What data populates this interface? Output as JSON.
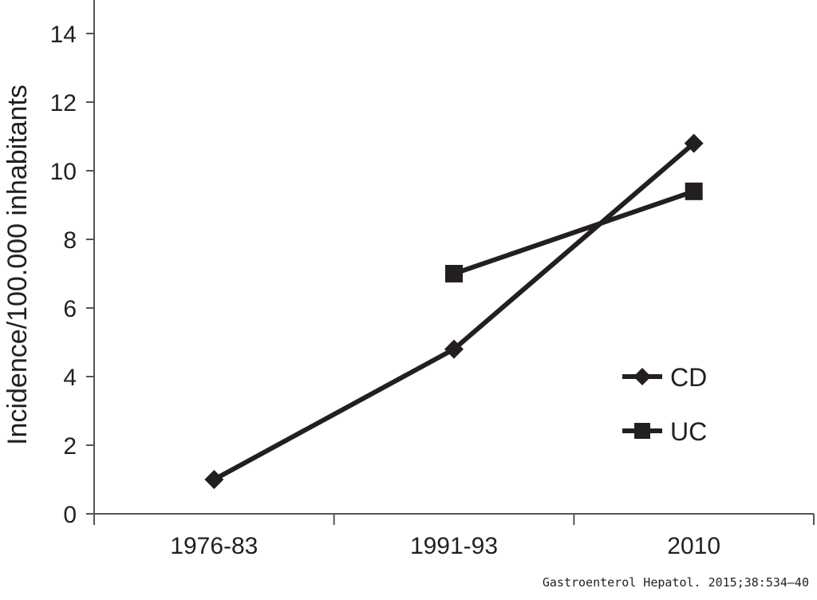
{
  "chart_data": {
    "type": "line",
    "title": "",
    "xlabel": "",
    "ylabel": "Incidence/100.000 inhabitants",
    "categories": [
      "1976-83",
      "1991-93",
      "2010"
    ],
    "ylim": [
      0,
      14
    ],
    "yticks": [
      "0",
      "2",
      "4",
      "6",
      "8",
      "10",
      "12",
      "14"
    ],
    "grid": false,
    "legend_position": "right",
    "series": [
      {
        "name": "CD",
        "marker": "diamond",
        "values": [
          1.0,
          4.8,
          10.8
        ]
      },
      {
        "name": "UC",
        "marker": "square",
        "values": [
          null,
          7.0,
          9.4
        ]
      }
    ],
    "colors": {
      "line": "#231f20",
      "axis": "#555555"
    }
  },
  "credit": "Gastroenterol Hepatol. 2015;38:534–40"
}
